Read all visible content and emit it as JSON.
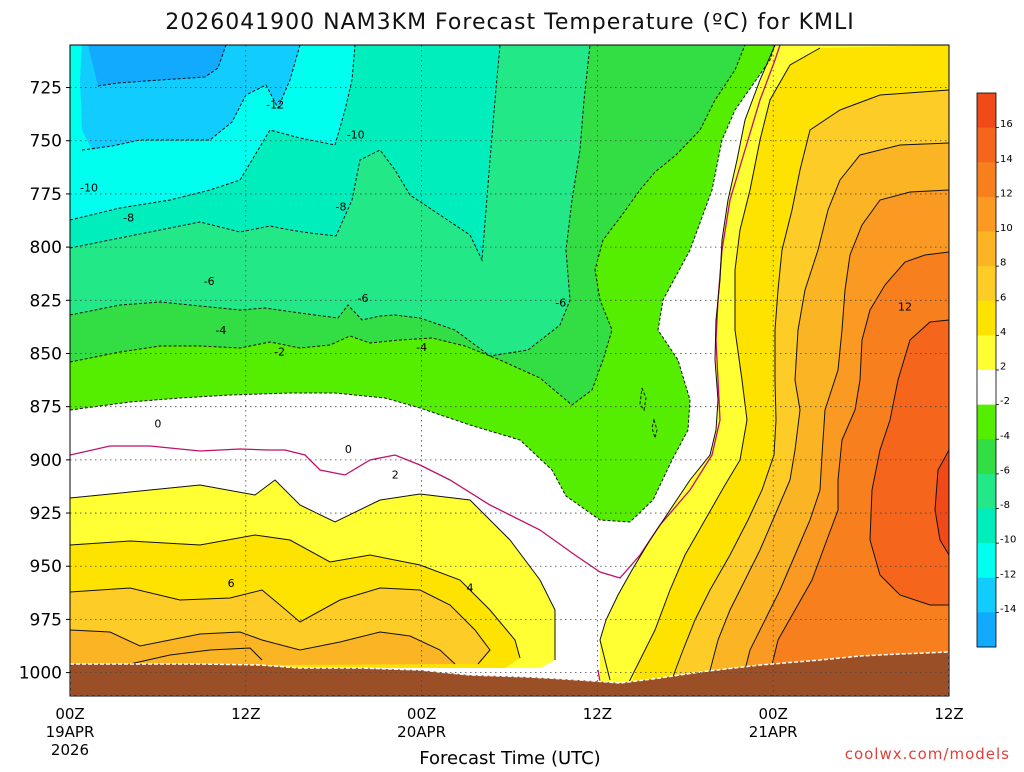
{
  "chart_data": {
    "type": "heatmap",
    "title": "2026041900 NAM3KM Forecast Temperature (ºC) for KMLI",
    "xlabel": "Forecast Time (UTC)",
    "ylabel": "",
    "credit": "coolwx.com/models",
    "x_ticks": [
      {
        "hour": 0,
        "label": "00Z",
        "sub1": "19APR",
        "sub2": "2026"
      },
      {
        "hour": 12,
        "label": "12Z",
        "sub1": "",
        "sub2": ""
      },
      {
        "hour": 24,
        "label": "00Z",
        "sub1": "20APR",
        "sub2": ""
      },
      {
        "hour": 36,
        "label": "12Z",
        "sub1": "",
        "sub2": ""
      },
      {
        "hour": 48,
        "label": "00Z",
        "sub1": "21APR",
        "sub2": ""
      },
      {
        "hour": 60,
        "label": "12Z",
        "sub1": "",
        "sub2": ""
      }
    ],
    "xlim_hours": [
      0,
      60
    ],
    "y_ticks": [
      725,
      750,
      775,
      800,
      825,
      850,
      875,
      900,
      925,
      950,
      975,
      1000
    ],
    "ylim_hpa": [
      705,
      1011
    ],
    "y_unit": "hPa",
    "grid": true,
    "colorbar": {
      "labels": [
        "16",
        "14",
        "12",
        "10",
        "8",
        "6",
        "4",
        "2",
        "-2",
        "-4",
        "-6",
        "-8",
        "-10",
        "-12",
        "-14"
      ],
      "colors": [
        "#f04a1a",
        "#f5651c",
        "#f87f1e",
        "#fa9a22",
        "#fbb424",
        "#fdcc26",
        "#fee200",
        "#ffff33",
        "#ffffff",
        "#55ee00",
        "#33dd44",
        "#22e888",
        "#00eebb",
        "#00ffee",
        "#11ccff",
        "#11aaff"
      ]
    },
    "contour_labels": [
      {
        "value": "-12",
        "hour": 14.0,
        "hpa": 733
      },
      {
        "value": "-10",
        "hour": 19.5,
        "hpa": 747
      },
      {
        "value": "-10",
        "hour": 1.3,
        "hpa": 772
      },
      {
        "value": "-8",
        "hour": 4.0,
        "hpa": 786
      },
      {
        "value": "-8",
        "hour": 18.5,
        "hpa": 781
      },
      {
        "value": "-6",
        "hour": 9.5,
        "hpa": 816
      },
      {
        "value": "-6",
        "hour": 20.0,
        "hpa": 824
      },
      {
        "value": "-6",
        "hour": 33.5,
        "hpa": 826
      },
      {
        "value": "-4",
        "hour": 10.3,
        "hpa": 839
      },
      {
        "value": "-4",
        "hour": 24.0,
        "hpa": 847
      },
      {
        "value": "-2",
        "hour": 14.3,
        "hpa": 849
      },
      {
        "value": "0",
        "hour": 6.0,
        "hpa": 883
      },
      {
        "value": "0",
        "hour": 19.0,
        "hpa": 895
      },
      {
        "value": "2",
        "hour": 22.2,
        "hpa": 907
      },
      {
        "value": "4",
        "hour": 27.3,
        "hpa": 960
      },
      {
        "value": "6",
        "hour": 11.0,
        "hpa": 958
      },
      {
        "value": "12",
        "hour": 57.0,
        "hpa": 828
      }
    ]
  }
}
